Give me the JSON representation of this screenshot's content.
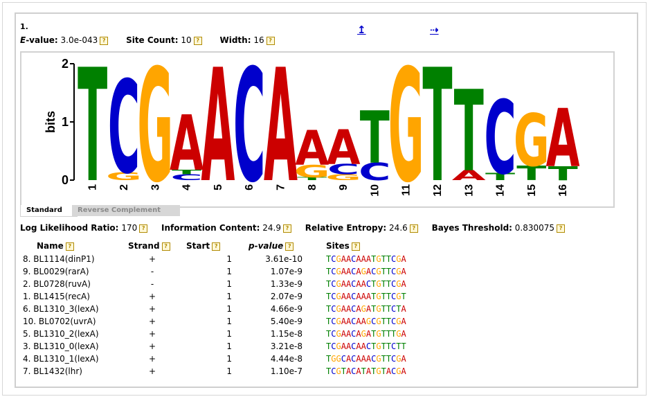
{
  "motif": {
    "number": "1.",
    "evalue_label": "E-value:",
    "evalue": "3.0e-043",
    "site_count_label": "Site Count:",
    "site_count": "10",
    "width_label": "Width:",
    "width": "16",
    "nav_up_glyph": "↥",
    "nav_next_glyph": "⇢"
  },
  "logo": {
    "ylabel": "bits",
    "y_ticks": [
      "0",
      "1",
      "2"
    ],
    "ymax": 2,
    "colors": {
      "A": "#cc0000",
      "C": "#0000cc",
      "G": "#ffa500",
      "T": "#008000"
    },
    "positions": [
      {
        "pos": "1",
        "letters": [
          {
            "b": "T",
            "h": 1.95
          }
        ]
      },
      {
        "pos": "2",
        "letters": [
          {
            "b": "G",
            "h": 0.14
          },
          {
            "b": "C",
            "h": 1.6
          }
        ]
      },
      {
        "pos": "3",
        "letters": [
          {
            "b": "G",
            "h": 1.95
          }
        ]
      },
      {
        "pos": "4",
        "letters": [
          {
            "b": "C",
            "h": 0.1
          },
          {
            "b": "T",
            "h": 0.08
          },
          {
            "b": "A",
            "h": 0.95
          }
        ]
      },
      {
        "pos": "5",
        "letters": [
          {
            "b": "A",
            "h": 1.95
          }
        ]
      },
      {
        "pos": "6",
        "letters": [
          {
            "b": "C",
            "h": 1.95
          }
        ]
      },
      {
        "pos": "7",
        "letters": [
          {
            "b": "A",
            "h": 1.95
          }
        ]
      },
      {
        "pos": "8",
        "letters": [
          {
            "b": "T",
            "h": 0.05
          },
          {
            "b": "G",
            "h": 0.22
          },
          {
            "b": "A",
            "h": 0.6
          }
        ]
      },
      {
        "pos": "9",
        "letters": [
          {
            "b": "G",
            "h": 0.1
          },
          {
            "b": "C",
            "h": 0.18
          },
          {
            "b": "A",
            "h": 0.6
          }
        ]
      },
      {
        "pos": "10",
        "letters": [
          {
            "b": "C",
            "h": 0.3
          },
          {
            "b": "T",
            "h": 0.9
          }
        ]
      },
      {
        "pos": "11",
        "letters": [
          {
            "b": "G",
            "h": 1.95
          }
        ]
      },
      {
        "pos": "12",
        "letters": [
          {
            "b": "T",
            "h": 1.95
          }
        ]
      },
      {
        "pos": "13",
        "letters": [
          {
            "b": "A",
            "h": 0.17
          },
          {
            "b": "T",
            "h": 1.4
          }
        ]
      },
      {
        "pos": "14",
        "letters": [
          {
            "b": "T",
            "h": 0.12
          },
          {
            "b": "C",
            "h": 1.27
          }
        ]
      },
      {
        "pos": "15",
        "letters": [
          {
            "b": "T",
            "h": 0.25
          },
          {
            "b": "G",
            "h": 0.9
          }
        ]
      },
      {
        "pos": "16",
        "letters": [
          {
            "b": "T",
            "h": 0.24
          },
          {
            "b": "A",
            "h": 1.0
          }
        ]
      }
    ]
  },
  "tabs": {
    "standard": "Standard",
    "reverse": "Reverse Complement"
  },
  "stats2": {
    "llr_label": "Log Likelihood Ratio:",
    "llr": "170",
    "ic_label": "Information Content:",
    "ic": "24.9",
    "re_label": "Relative Entropy:",
    "re": "24.6",
    "bt_label": "Bayes Threshold:",
    "bt": "0.830075"
  },
  "table": {
    "headers": {
      "name": "Name",
      "strand": "Strand",
      "start": "Start",
      "pvalue": "p-value",
      "sites": "Sites"
    },
    "rows": [
      {
        "name": "8. BL1114(dinP1)",
        "strand": "+",
        "start": "1",
        "pvalue": "3.61e-10",
        "site": "TCGAACAAATGTTCGA"
      },
      {
        "name": "9. BL0029(rarA)",
        "strand": "-",
        "start": "1",
        "pvalue": "1.07e-9",
        "site": "TCGAACAGACGTTCGA"
      },
      {
        "name": "2. BL0728(ruvA)",
        "strand": "-",
        "start": "1",
        "pvalue": "1.33e-9",
        "site": "TCGAACAACTGTTCGA"
      },
      {
        "name": "1. BL1415(recA)",
        "strand": "+",
        "start": "1",
        "pvalue": "2.07e-9",
        "site": "TCGAACAAATGTTCGT"
      },
      {
        "name": "6. BL1310_3(lexA)",
        "strand": "+",
        "start": "1",
        "pvalue": "4.66e-9",
        "site": "TCGAACAGATGTTCTA"
      },
      {
        "name": "10. BL0702(uvrA)",
        "strand": "+",
        "start": "1",
        "pvalue": "5.40e-9",
        "site": "TCGAACAAGCGTTCGA"
      },
      {
        "name": "5. BL1310_2(lexA)",
        "strand": "+",
        "start": "1",
        "pvalue": "1.15e-8",
        "site": "TCGAACAGATGTTTGA"
      },
      {
        "name": "3. BL1310_0(lexA)",
        "strand": "+",
        "start": "1",
        "pvalue": "3.21e-8",
        "site": "TCGAACAACTGTTCTT"
      },
      {
        "name": "4. BL1310_1(lexA)",
        "strand": "+",
        "start": "1",
        "pvalue": "4.44e-8",
        "site": "TGGCACAAACGTTCGA"
      },
      {
        "name": "7. BL1432(lhr)",
        "strand": "+",
        "start": "1",
        "pvalue": "1.10e-7",
        "site": "TCGTACATATGTACGA"
      }
    ]
  }
}
